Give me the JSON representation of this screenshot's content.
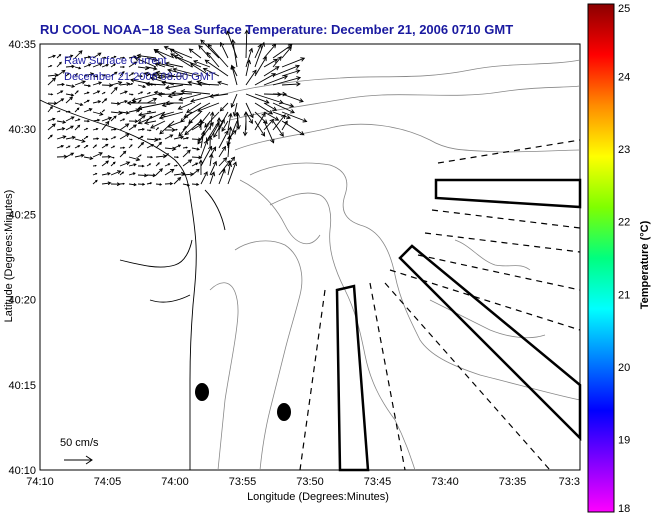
{
  "title": "RU COOL  NOAA−18  Sea Surface Temperature:  December 21, 2006 0710 GMT",
  "legend": {
    "line1": "Raw Surface Current",
    "line2": "December 21 2006 08:00 GMT"
  },
  "scale_label": "50 cm/s",
  "colorbar": {
    "label": "Temperature (°C)",
    "ticks": [
      "25",
      "24",
      "23",
      "22",
      "21",
      "20",
      "19",
      "18"
    ],
    "colors": [
      "#8b0000",
      "#ff0000",
      "#ff8c00",
      "#ffff00",
      "#7fff00",
      "#00ff7f",
      "#00ffff",
      "#0080ff",
      "#0000ff",
      "#8000ff",
      "#ff00ff"
    ]
  },
  "axes": {
    "xlabel": "Longitude (Degrees:Minutes)",
    "ylabel": "Latitude (Degrees:Minutes)",
    "x_ticks": [
      "74:10",
      "74:05",
      "74:00",
      "73:55",
      "73:50",
      "73:45",
      "73:40",
      "73:35",
      "73:3"
    ],
    "y_ticks": [
      "40:35",
      "40:30",
      "40:25",
      "40:20",
      "40:15",
      "40:10"
    ]
  }
}
